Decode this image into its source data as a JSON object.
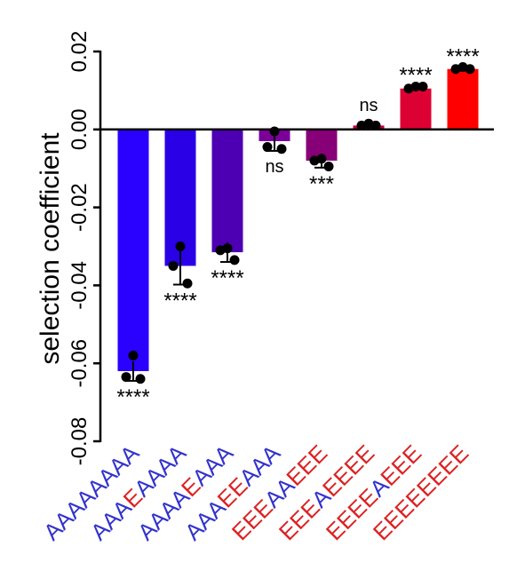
{
  "chart_data": {
    "type": "bar",
    "ylabel": "selection coefficient",
    "ylim": [
      -0.08,
      0.02
    ],
    "yticks": [
      0.02,
      0.0,
      -0.02,
      -0.04,
      -0.06,
      -0.08
    ],
    "ytick_labels": [
      "0.02",
      "0.00",
      "-0.02",
      "-0.04",
      "-0.06",
      "-0.08"
    ],
    "grid": false,
    "categories": [
      [
        {
          "t": "AAAAAAAA",
          "c": "A"
        }
      ],
      [
        {
          "t": "AAA",
          "c": "A"
        },
        {
          "t": "E",
          "c": "E"
        },
        {
          "t": "AAAA",
          "c": "A"
        }
      ],
      [
        {
          "t": "AAAA",
          "c": "A"
        },
        {
          "t": "E",
          "c": "E"
        },
        {
          "t": "AAA",
          "c": "A"
        }
      ],
      [
        {
          "t": "AAA",
          "c": "A"
        },
        {
          "t": "EE",
          "c": "E"
        },
        {
          "t": "AAA",
          "c": "A"
        }
      ],
      [
        {
          "t": "EEE",
          "c": "E"
        },
        {
          "t": "AA",
          "c": "A"
        },
        {
          "t": "EEE",
          "c": "E"
        }
      ],
      [
        {
          "t": "EEE",
          "c": "E"
        },
        {
          "t": "A",
          "c": "A"
        },
        {
          "t": "EEEE",
          "c": "E"
        }
      ],
      [
        {
          "t": "EEEE",
          "c": "E"
        },
        {
          "t": "A",
          "c": "A"
        },
        {
          "t": "EEE",
          "c": "E"
        }
      ],
      [
        {
          "t": "EEEEEEEE",
          "c": "E"
        }
      ]
    ],
    "label_colors": {
      "A": "#3333cc",
      "E": "#dd2222"
    },
    "values": [
      -0.062,
      -0.035,
      -0.0315,
      -0.003,
      -0.008,
      0.001,
      0.0105,
      0.0155
    ],
    "errors": [
      0.0025,
      0.0048,
      0.0025,
      0.0025,
      0.0018,
      0.0005,
      0.0007,
      0.0005
    ],
    "points": [
      [
        -0.058,
        -0.0635,
        -0.064
      ],
      [
        -0.03,
        -0.035,
        -0.0395
      ],
      [
        -0.0305,
        -0.031,
        -0.0335
      ],
      [
        -0.0005,
        -0.0045,
        -0.005
      ],
      [
        -0.0075,
        -0.008,
        -0.0095
      ],
      [
        0.001,
        0.0015,
        0.001
      ],
      [
        0.0105,
        0.011,
        0.011
      ],
      [
        0.0155,
        0.016,
        0.0155
      ]
    ],
    "significance": [
      "****",
      "****",
      "****",
      "ns",
      "***",
      "ns",
      "****",
      "****"
    ],
    "bar_colors": [
      "#2a00ff",
      "#2a00e6",
      "#4d00b3",
      "#7a0099",
      "#880077",
      "#c0003a",
      "#dd0033",
      "#ff0000"
    ]
  }
}
